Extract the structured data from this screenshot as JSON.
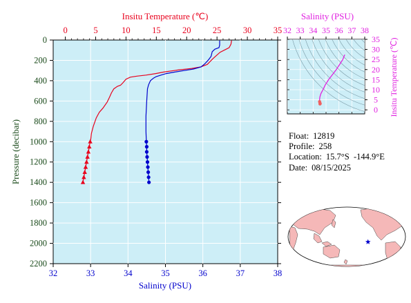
{
  "chart_data": [
    {
      "type": "line",
      "id": "main-profile",
      "title": "",
      "ylabel": "Pressure (decibar)",
      "ylim": [
        2200,
        0
      ],
      "yticks": [
        0,
        200,
        400,
        600,
        800,
        1000,
        1200,
        1400,
        1600,
        1800,
        2000,
        2200
      ],
      "top_axis": {
        "label": "Insitu Temperature (℃)",
        "range": [
          -2,
          35
        ],
        "ticks": [
          0,
          5,
          10,
          15,
          20,
          25,
          30,
          35
        ],
        "color": "#e8001c"
      },
      "bottom_axis": {
        "label": "Salinity (PSU)",
        "range": [
          32,
          38
        ],
        "ticks": [
          32,
          33,
          34,
          35,
          36,
          37,
          38
        ],
        "color": "#0000cc"
      },
      "background": "#cdeef7",
      "grid": true,
      "series": [
        {
          "name": "Insitu Temperature",
          "axis": "top",
          "color": "#e8001c",
          "marker": "triangle",
          "points": [
            [
              27.4,
              5
            ],
            [
              27.3,
              40
            ],
            [
              27.0,
              75
            ],
            [
              26.5,
              90
            ],
            [
              25.5,
              120
            ],
            [
              24.3,
              185
            ],
            [
              23.8,
              215
            ],
            [
              23.4,
              240
            ],
            [
              22.3,
              265
            ],
            [
              20.8,
              280
            ],
            [
              18.6,
              295
            ],
            [
              16.2,
              315
            ],
            [
              14.9,
              330
            ],
            [
              13.3,
              345
            ],
            [
              11.8,
              355
            ],
            [
              10.7,
              365
            ],
            [
              10.0,
              385
            ],
            [
              9.5,
              420
            ],
            [
              9.1,
              445
            ],
            [
              8.6,
              455
            ],
            [
              8.0,
              480
            ],
            [
              7.6,
              520
            ],
            [
              7.3,
              560
            ],
            [
              6.9,
              610
            ],
            [
              6.2,
              670
            ],
            [
              5.6,
              710
            ],
            [
              5.1,
              765
            ],
            [
              4.6,
              850
            ],
            [
              4.3,
              920
            ],
            [
              4.2,
              970
            ],
            [
              4.1,
              1000
            ],
            [
              3.95,
              1050
            ],
            [
              3.8,
              1100
            ],
            [
              3.65,
              1150
            ],
            [
              3.5,
              1200
            ],
            [
              3.35,
              1250
            ],
            [
              3.2,
              1300
            ],
            [
              3.05,
              1350
            ],
            [
              2.9,
              1400
            ]
          ],
          "marker_points": [
            [
              4.1,
              1000
            ],
            [
              3.95,
              1050
            ],
            [
              3.8,
              1100
            ],
            [
              3.65,
              1150
            ],
            [
              3.5,
              1200
            ],
            [
              3.35,
              1250
            ],
            [
              3.2,
              1300
            ],
            [
              3.05,
              1350
            ],
            [
              2.9,
              1400
            ]
          ]
        },
        {
          "name": "Salinity",
          "axis": "bottom",
          "color": "#0000cc",
          "marker": "circle",
          "points": [
            [
              36.45,
              5
            ],
            [
              36.45,
              50
            ],
            [
              36.43,
              75
            ],
            [
              36.32,
              90
            ],
            [
              36.25,
              115
            ],
            [
              36.22,
              160
            ],
            [
              36.15,
              195
            ],
            [
              36.05,
              235
            ],
            [
              35.95,
              265
            ],
            [
              35.75,
              285
            ],
            [
              35.5,
              300
            ],
            [
              35.25,
              315
            ],
            [
              35.02,
              330
            ],
            [
              34.88,
              345
            ],
            [
              34.75,
              360
            ],
            [
              34.68,
              375
            ],
            [
              34.6,
              400
            ],
            [
              34.55,
              440
            ],
            [
              34.52,
              480
            ],
            [
              34.5,
              600
            ],
            [
              34.48,
              750
            ],
            [
              34.48,
              900
            ],
            [
              34.49,
              1000
            ],
            [
              34.5,
              1050
            ],
            [
              34.5,
              1100
            ],
            [
              34.51,
              1150
            ],
            [
              34.52,
              1200
            ],
            [
              34.53,
              1250
            ],
            [
              34.54,
              1300
            ],
            [
              34.55,
              1350
            ],
            [
              34.56,
              1400
            ]
          ],
          "marker_points": [
            [
              34.49,
              1000
            ],
            [
              34.5,
              1050
            ],
            [
              34.5,
              1100
            ],
            [
              34.51,
              1150
            ],
            [
              34.52,
              1200
            ],
            [
              34.53,
              1250
            ],
            [
              34.54,
              1300
            ],
            [
              34.55,
              1350
            ],
            [
              34.56,
              1400
            ]
          ]
        }
      ]
    },
    {
      "type": "scatter",
      "id": "ts-diagram",
      "title": "",
      "top_axis": {
        "label": "Salinity (PSU)",
        "range": [
          32,
          38
        ],
        "ticks": [
          32,
          33,
          34,
          35,
          36,
          37,
          38
        ],
        "color": "#e020e0"
      },
      "right_axis": {
        "label": "Insitu Temperature (℃)",
        "range": [
          -2,
          35
        ],
        "ticks": [
          0,
          5,
          10,
          15,
          20,
          25,
          30,
          35
        ],
        "color": "#e020e0"
      },
      "background": "#cdeef7",
      "grid": true,
      "series": [
        {
          "name": "T-S curve",
          "color": "#e020e0",
          "points": [
            [
              36.45,
              27.4
            ],
            [
              36.4,
              26.6
            ],
            [
              36.3,
              25.0
            ],
            [
              36.2,
              24.0
            ],
            [
              36.05,
              22.5
            ],
            [
              35.8,
              20.0
            ],
            [
              35.5,
              17.5
            ],
            [
              35.2,
              15.0
            ],
            [
              34.95,
              12.5
            ],
            [
              34.8,
              10.5
            ],
            [
              34.68,
              9.0
            ],
            [
              34.6,
              8.0
            ],
            [
              34.55,
              7.0
            ],
            [
              34.52,
              6.2
            ],
            [
              34.5,
              5.2
            ],
            [
              34.49,
              4.4
            ],
            [
              34.5,
              4.0
            ],
            [
              34.52,
              3.5
            ],
            [
              34.55,
              3.0
            ]
          ],
          "end_points": [
            [
              34.5,
              4.1
            ],
            [
              34.52,
              3.6
            ],
            [
              34.55,
              3.1
            ],
            [
              34.53,
              2.9
            ]
          ],
          "end_color": "#f06060"
        }
      ]
    }
  ],
  "info": {
    "float_label": "Float:",
    "float_value": "12819",
    "profile_label": "Profile:",
    "profile_value": "258",
    "location_label": "Location:",
    "location_value": "15.7°S  -144.9°E",
    "date_label": "Date:",
    "date_value": "08/15/2025"
  },
  "map": {
    "marker_lon": -144.9,
    "marker_lat": -15.7,
    "ocean_color": "#ffffff",
    "land_color": "#f5b8b8",
    "marker_color": "#0000cc"
  }
}
